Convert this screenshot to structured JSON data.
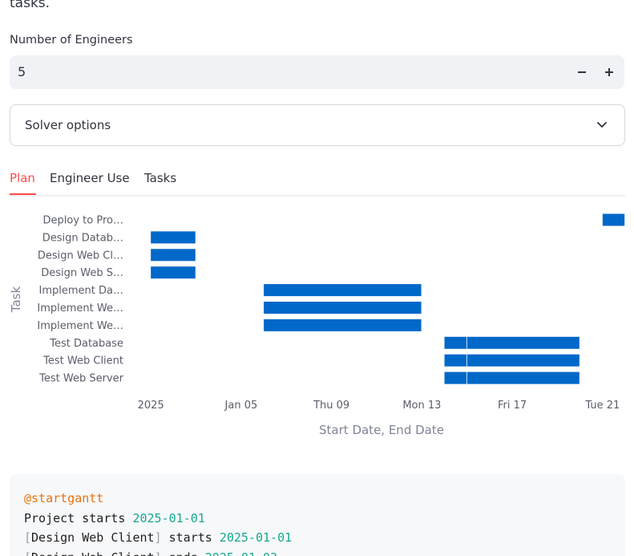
{
  "intro": {
    "tail_text": "tasks."
  },
  "engineers": {
    "label": "Number of Engineers",
    "value": "5",
    "minus_label": "−",
    "plus_label": "+"
  },
  "solver": {
    "label": "Solver options"
  },
  "tabs": [
    {
      "label": "Plan",
      "active": true
    },
    {
      "label": "Engineer Use",
      "active": false
    },
    {
      "label": "Tasks",
      "active": false
    }
  ],
  "colors": {
    "accent": "#ff4b4b",
    "bar": "#0068c9",
    "input_bg": "#f0f2f6"
  },
  "chart_data": {
    "type": "bar",
    "orientation": "horizontal-gantt",
    "ylabel": "Task",
    "xlabel": "Start Date, End Date",
    "x_ticks": [
      "2025",
      "Jan 05",
      "Thu 09",
      "Mon 13",
      "Fri 17",
      "Tue 21"
    ],
    "x_tick_dates": [
      "2025-01-01",
      "2025-01-05",
      "2025-01-09",
      "2025-01-13",
      "2025-01-17",
      "2025-01-21"
    ],
    "xlim": [
      "2024-12-31",
      "2025-01-22"
    ],
    "categories": [
      "Deploy to Pro…",
      "Design Datab…",
      "Design Web Cl…",
      "Design Web S…",
      "Implement Da…",
      "Implement We…",
      "Implement We…",
      "Test Database",
      "Test Web Client",
      "Test Web Server"
    ],
    "bars": [
      {
        "task": "Deploy to Pro…",
        "start": "2025-01-21",
        "end": "2025-01-23"
      },
      {
        "task": "Design Datab…",
        "start": "2025-01-01",
        "end": "2025-01-03"
      },
      {
        "task": "Design Web Cl…",
        "start": "2025-01-01",
        "end": "2025-01-03"
      },
      {
        "task": "Design Web S…",
        "start": "2025-01-01",
        "end": "2025-01-03"
      },
      {
        "task": "Implement Da…",
        "start": "2025-01-06",
        "end": "2025-01-13"
      },
      {
        "task": "Implement We…",
        "start": "2025-01-06",
        "end": "2025-01-13"
      },
      {
        "task": "Implement We…",
        "start": "2025-01-06",
        "end": "2025-01-13"
      },
      {
        "task": "Test Database",
        "start": "2025-01-14",
        "end": "2025-01-15"
      },
      {
        "task": "Test Database",
        "start": "2025-01-15",
        "end": "2025-01-20"
      },
      {
        "task": "Test Web Client",
        "start": "2025-01-14",
        "end": "2025-01-15"
      },
      {
        "task": "Test Web Client",
        "start": "2025-01-15",
        "end": "2025-01-20"
      },
      {
        "task": "Test Web Server",
        "start": "2025-01-14",
        "end": "2025-01-15"
      },
      {
        "task": "Test Web Server",
        "start": "2025-01-15",
        "end": "2025-01-20"
      }
    ]
  },
  "code": {
    "lines": [
      [
        {
          "t": "@startgantt",
          "c": "kw"
        }
      ],
      [
        {
          "t": "Project starts ",
          "c": ""
        },
        {
          "t": "2025-01-01",
          "c": "num"
        }
      ],
      [
        {
          "t": "[",
          "c": "brk"
        },
        {
          "t": "Design Web Client",
          "c": ""
        },
        {
          "t": "]",
          "c": "brk"
        },
        {
          "t": " starts ",
          "c": ""
        },
        {
          "t": "2025-01-01",
          "c": "num"
        }
      ],
      [
        {
          "t": "[",
          "c": "brk"
        },
        {
          "t": "Design Web Client",
          "c": ""
        },
        {
          "t": "]",
          "c": "brk"
        },
        {
          "t": " ends ",
          "c": ""
        },
        {
          "t": "2025-01-03",
          "c": "num"
        }
      ]
    ]
  }
}
